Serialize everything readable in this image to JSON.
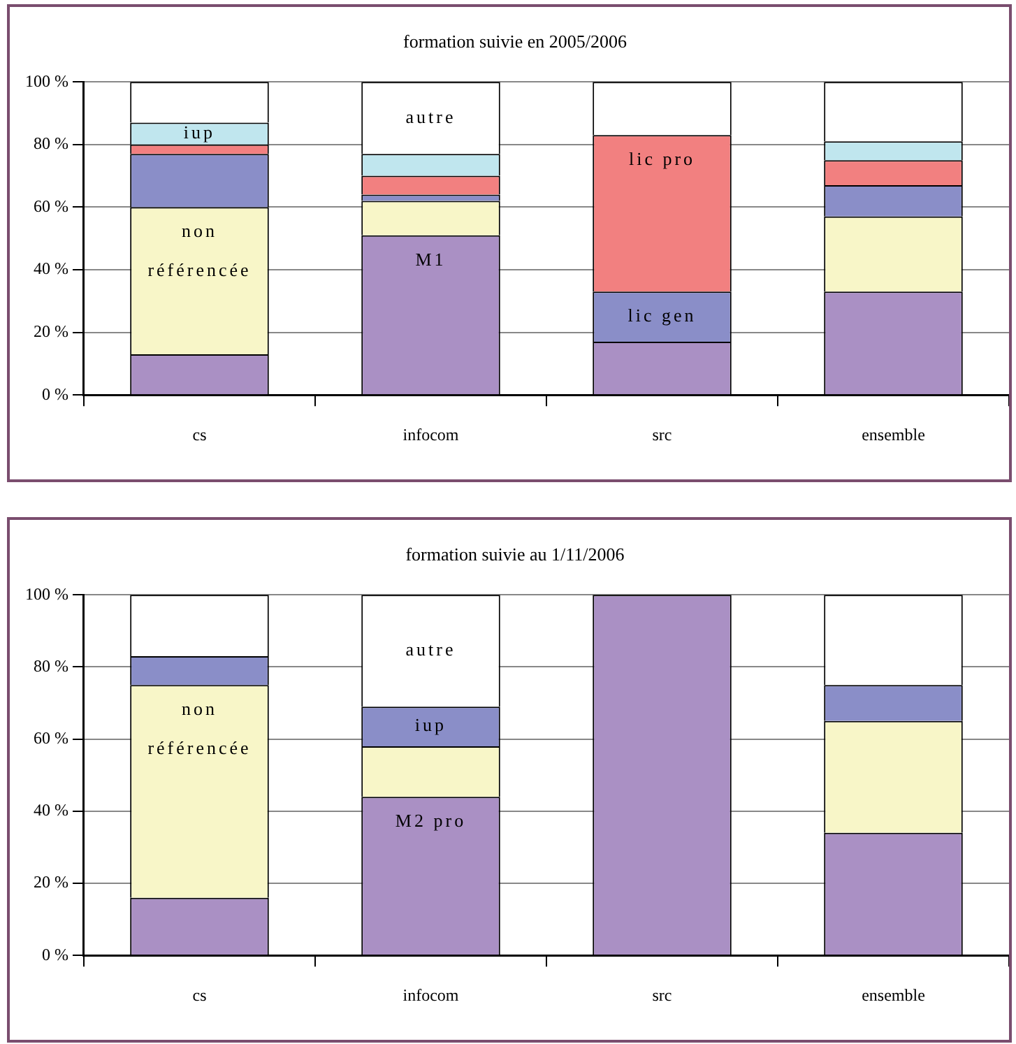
{
  "chart_data": [
    {
      "type": "bar",
      "title": "formation suivie en 2005/2006",
      "categories": [
        "cs",
        "infocom",
        "src",
        "ensemble"
      ],
      "stacked": true,
      "ylim": [
        0,
        100
      ],
      "yticks": [
        {
          "value": 0,
          "label": "0 %"
        },
        {
          "value": 20,
          "label": "20 %"
        },
        {
          "value": 40,
          "label": "40 %"
        },
        {
          "value": 60,
          "label": "60 %"
        },
        {
          "value": 80,
          "label": "80 %"
        },
        {
          "value": 100,
          "label": "100 %"
        }
      ],
      "grid": "y",
      "legend": false,
      "series": [
        {
          "color": "#aa90c4",
          "values": [
            13,
            51,
            17,
            33
          ]
        },
        {
          "color": "#f8f6c8",
          "values": [
            47,
            11,
            0,
            24
          ]
        },
        {
          "color": "#8a8ec8",
          "values": [
            17,
            2,
            16,
            10
          ]
        },
        {
          "color": "#f28080",
          "values": [
            3,
            6,
            50,
            8
          ]
        },
        {
          "color": "#c0e6ee",
          "values": [
            7,
            7,
            0,
            6
          ]
        },
        {
          "color": "#ffffff",
          "values": [
            13,
            23,
            17,
            19
          ]
        }
      ],
      "annotations": [
        {
          "text": "iup",
          "x": "cs",
          "y": 87
        },
        {
          "text": "non référencée",
          "x": "cs",
          "y": 60
        },
        {
          "text": "autre",
          "x": "infocom",
          "y": 100
        },
        {
          "text": "M1",
          "x": "infocom",
          "y": 51
        },
        {
          "text": "lic pro",
          "x": "src",
          "y": 83
        },
        {
          "text": "lic gen",
          "x": "src",
          "y": 33
        }
      ]
    },
    {
      "type": "bar",
      "title": "formation suivie au 1/11/2006",
      "categories": [
        "cs",
        "infocom",
        "src",
        "ensemble"
      ],
      "stacked": true,
      "ylim": [
        0,
        100
      ],
      "yticks": [
        {
          "value": 0,
          "label": "0 %"
        },
        {
          "value": 20,
          "label": "20 %"
        },
        {
          "value": 40,
          "label": "40 %"
        },
        {
          "value": 60,
          "label": "60 %"
        },
        {
          "value": 80,
          "label": "80 %"
        },
        {
          "value": 100,
          "label": "100 %"
        }
      ],
      "grid": "y",
      "legend": false,
      "series": [
        {
          "color": "#aa90c4",
          "values": [
            16,
            44,
            100,
            34
          ]
        },
        {
          "color": "#f8f6c8",
          "values": [
            59,
            14,
            0,
            31
          ]
        },
        {
          "color": "#8a8ec8",
          "values": [
            8,
            11,
            0,
            10
          ]
        },
        {
          "color": "#ffffff",
          "values": [
            17,
            31,
            0,
            25
          ]
        }
      ],
      "annotations": [
        {
          "text": "non référencée",
          "x": "cs",
          "y": 75
        },
        {
          "text": "autre",
          "x": "infocom",
          "y": 100
        },
        {
          "text": "iup",
          "x": "infocom",
          "y": 69
        },
        {
          "text": "M2 pro",
          "x": "infocom",
          "y": 44
        }
      ]
    }
  ]
}
